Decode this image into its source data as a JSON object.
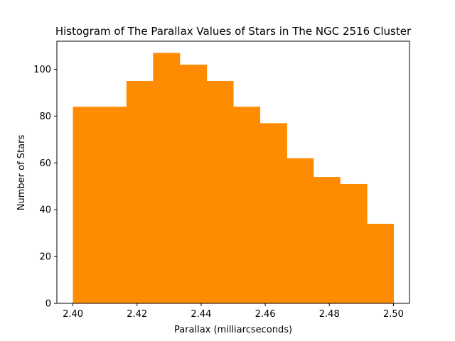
{
  "chart_data": {
    "type": "bar",
    "title": "Histogram of The Parallax Values of Stars in The NGC 2516 Cluster",
    "xlabel": "Parallax (milliarcseconds)",
    "ylabel": "Number of Stars",
    "bin_edges": [
      2.4,
      2.4083,
      2.4167,
      2.425,
      2.4333,
      2.4417,
      2.45,
      2.4583,
      2.4667,
      2.475,
      2.4833,
      2.4917,
      2.5
    ],
    "values": [
      84,
      84,
      95,
      107,
      102,
      95,
      84,
      77,
      62,
      54,
      51,
      34
    ],
    "xlim": [
      2.395,
      2.505
    ],
    "ylim": [
      0,
      112
    ],
    "xticks": [
      "2.40",
      "2.42",
      "2.44",
      "2.46",
      "2.48",
      "2.50"
    ],
    "yticks": [
      "0",
      "20",
      "40",
      "60",
      "80",
      "100"
    ],
    "bar_color": "#ff8c00",
    "grid": false,
    "legend": "none"
  }
}
